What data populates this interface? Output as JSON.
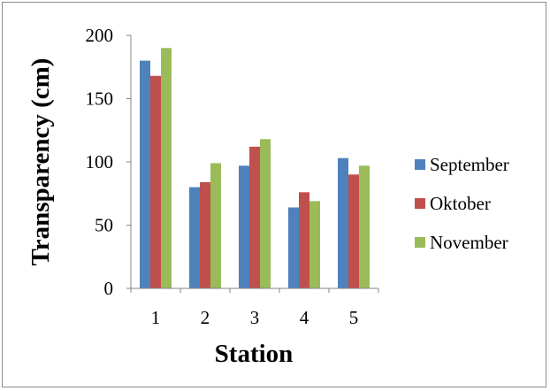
{
  "chart_data": {
    "type": "bar",
    "title": "",
    "xlabel": "Station",
    "ylabel": "Transparency  (cm)",
    "categories": [
      "1",
      "2",
      "3",
      "4",
      "5"
    ],
    "ylim": [
      0,
      200
    ],
    "yticks": [
      0,
      50,
      100,
      150,
      200
    ],
    "grid": false,
    "legend_position": "right",
    "series": [
      {
        "name": "September",
        "color": "#4f81bd",
        "values": [
          180,
          80,
          97,
          64,
          103
        ]
      },
      {
        "name": "Oktober",
        "color": "#c0504d",
        "values": [
          168,
          84,
          112,
          76,
          90
        ]
      },
      {
        "name": "November",
        "color": "#9bbb59",
        "values": [
          190,
          99,
          118,
          69,
          97
        ]
      }
    ]
  }
}
